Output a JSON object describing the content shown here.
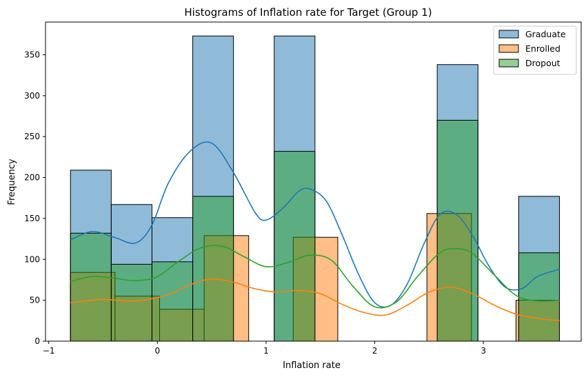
{
  "chart_data": {
    "type": "histogram",
    "title": "Histograms of Inflation rate for Target (Group 1)",
    "xlabel": "Inflation rate",
    "ylabel": "Frequency",
    "xlim": [
      -1.03,
      3.9
    ],
    "ylim": [
      0,
      390
    ],
    "xticks": [
      -1,
      0,
      1,
      2,
      3
    ],
    "yticks": [
      0,
      50,
      100,
      150,
      200,
      250,
      300,
      350
    ],
    "grid": false,
    "legend_position": "top-right",
    "series": [
      {
        "name": "Graduate",
        "color": "#1f77b4",
        "bins": [
          {
            "x0": -0.8,
            "x1": -0.425,
            "count": 209
          },
          {
            "x0": -0.425,
            "x1": -0.05,
            "count": 167
          },
          {
            "x0": -0.05,
            "x1": 0.325,
            "count": 151
          },
          {
            "x0": 0.325,
            "x1": 0.7,
            "count": 373
          },
          {
            "x0": 1.075,
            "x1": 1.45,
            "count": 373
          },
          {
            "x0": 2.575,
            "x1": 2.95,
            "count": 338
          },
          {
            "x0": 3.325,
            "x1": 3.7,
            "count": 177
          }
        ],
        "kde_x": [
          -0.8,
          -0.6,
          -0.4,
          -0.2,
          -0.05,
          0.1,
          0.3,
          0.5,
          0.7,
          0.9,
          1.0,
          1.15,
          1.3,
          1.4,
          1.55,
          1.7,
          1.85,
          2.0,
          2.15,
          2.3,
          2.45,
          2.6,
          2.75,
          2.9,
          3.05,
          3.2,
          3.35,
          3.5,
          3.7
        ],
        "kde_y": [
          124,
          134,
          127,
          120,
          142,
          193,
          232,
          242,
          206,
          157,
          148,
          162,
          183,
          186,
          172,
          130,
          82,
          47,
          44,
          70,
          118,
          155,
          155,
          129,
          92,
          66,
          64,
          79,
          88
        ]
      },
      {
        "name": "Enrolled",
        "color": "#ff7f0e",
        "bins": [
          {
            "x0": -0.8,
            "x1": -0.39,
            "count": 84
          },
          {
            "x0": -0.39,
            "x1": 0.02,
            "count": 55
          },
          {
            "x0": 0.02,
            "x1": 0.43,
            "count": 39
          },
          {
            "x0": 0.43,
            "x1": 0.84,
            "count": 129
          },
          {
            "x0": 1.25,
            "x1": 1.66,
            "count": 127
          },
          {
            "x0": 2.48,
            "x1": 2.89,
            "count": 156
          },
          {
            "x0": 3.3,
            "x1": 3.7,
            "count": 50
          }
        ],
        "kde_x": [
          -0.8,
          -0.5,
          -0.2,
          0.1,
          0.3,
          0.5,
          0.7,
          0.9,
          1.1,
          1.3,
          1.5,
          1.7,
          1.9,
          2.1,
          2.3,
          2.5,
          2.7,
          2.9,
          3.1,
          3.3,
          3.5,
          3.7
        ],
        "kde_y": [
          47,
          51,
          49,
          57,
          69,
          76,
          72,
          64,
          60,
          62,
          58,
          45,
          35,
          32,
          44,
          60,
          66,
          58,
          44,
          33,
          28,
          25
        ]
      },
      {
        "name": "Dropout",
        "color": "#2ca02c",
        "bins": [
          {
            "x0": -0.8,
            "x1": -0.425,
            "count": 132
          },
          {
            "x0": -0.425,
            "x1": -0.05,
            "count": 94
          },
          {
            "x0": -0.05,
            "x1": 0.325,
            "count": 97
          },
          {
            "x0": 0.325,
            "x1": 0.7,
            "count": 177
          },
          {
            "x0": 1.075,
            "x1": 1.45,
            "count": 232
          },
          {
            "x0": 2.575,
            "x1": 2.95,
            "count": 270
          },
          {
            "x0": 3.325,
            "x1": 3.7,
            "count": 108
          }
        ],
        "kde_x": [
          -0.8,
          -0.6,
          -0.4,
          -0.2,
          0.0,
          0.2,
          0.4,
          0.6,
          0.8,
          1.0,
          1.2,
          1.4,
          1.6,
          1.8,
          2.0,
          2.2,
          2.4,
          2.6,
          2.75,
          2.9,
          3.1,
          3.3,
          3.5,
          3.7
        ],
        "kde_y": [
          73,
          79,
          77,
          74,
          79,
          98,
          114,
          116,
          103,
          91,
          96,
          105,
          99,
          67,
          42,
          48,
          80,
          108,
          113,
          107,
          81,
          56,
          49,
          50
        ]
      }
    ]
  }
}
